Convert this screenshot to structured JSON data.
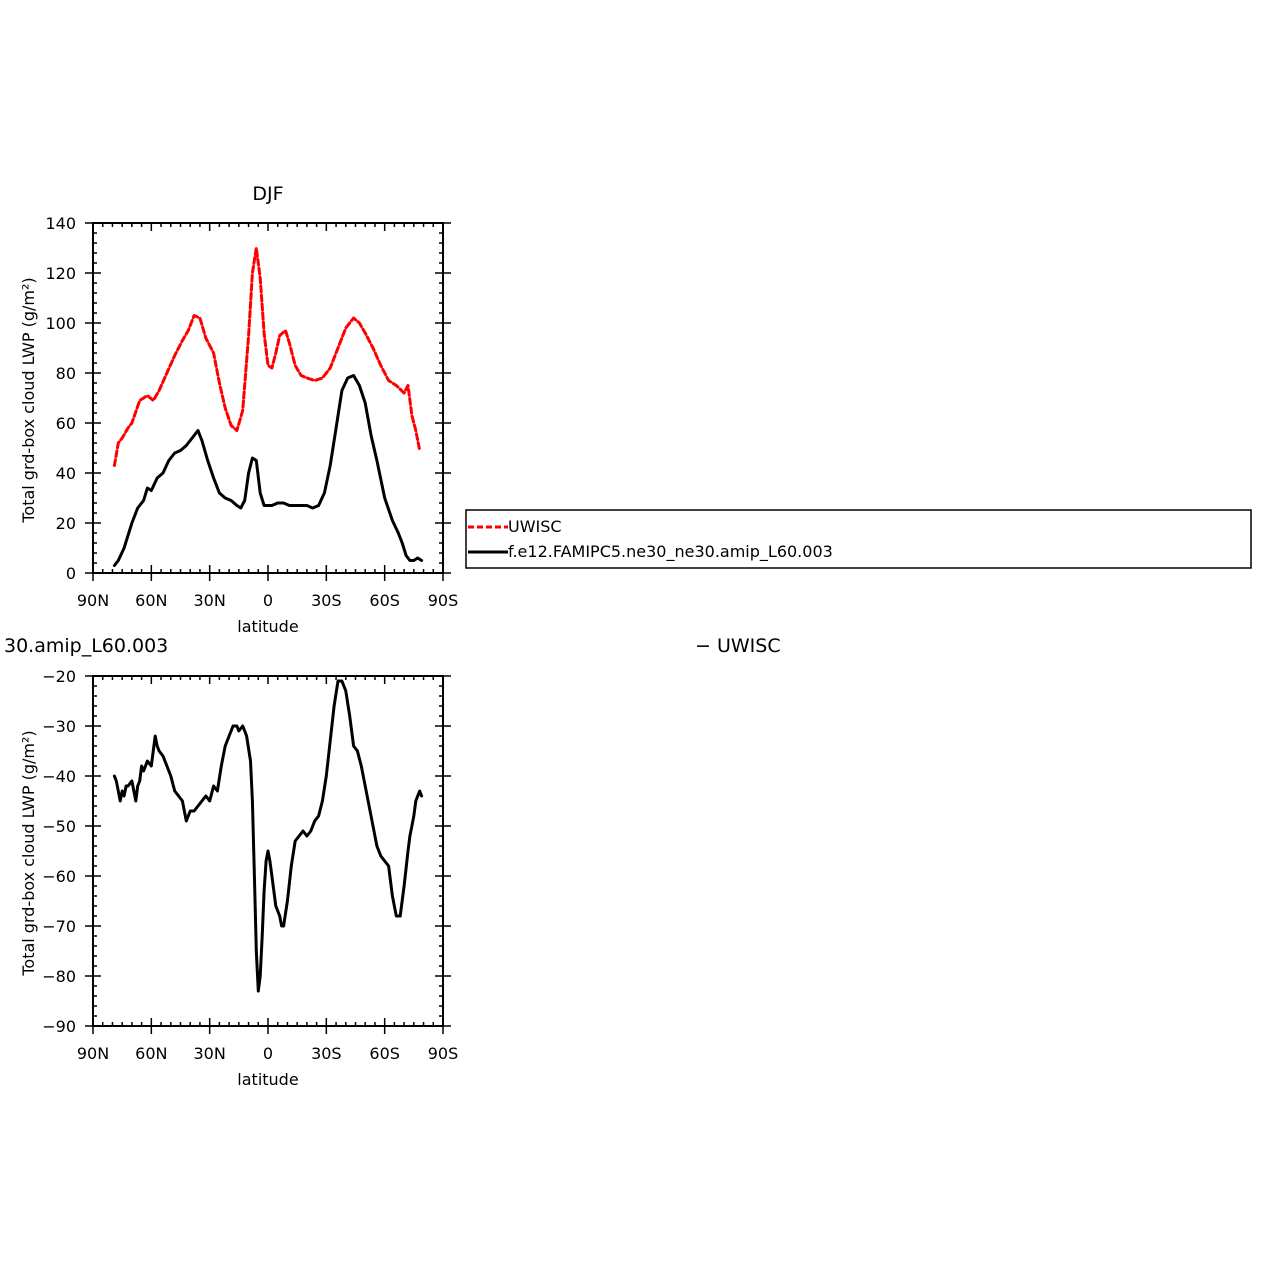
{
  "chart_data": [
    {
      "type": "line",
      "title": "DJF",
      "xlabel": "latitude",
      "ylabel": "Total grd-box cloud LWP (g/m²)",
      "xlim": [
        90,
        -90
      ],
      "ylim": [
        0,
        140
      ],
      "x_ticks": [
        90,
        60,
        30,
        0,
        -30,
        -60,
        -90
      ],
      "x_tick_labels": [
        "90N",
        "60N",
        "30N",
        "0",
        "30S",
        "60S",
        "90S"
      ],
      "y_ticks": [
        0,
        20,
        40,
        60,
        80,
        100,
        120,
        140
      ],
      "y_tick_labels": [
        "0",
        "20",
        "40",
        "60",
        "80",
        "100",
        "120",
        "140"
      ],
      "legend_position": "right, outside plot",
      "series": [
        {
          "name": "UWISC",
          "color": "#ff0000",
          "dash": "dashed",
          "x": [
            79,
            77,
            75,
            72,
            70,
            66,
            64,
            62,
            59,
            56,
            52,
            48,
            44,
            41,
            38,
            35,
            32,
            28,
            25,
            22,
            19,
            16,
            13,
            10,
            8,
            6,
            4,
            2,
            0,
            -2,
            -4,
            -6,
            -9,
            -11,
            -14,
            -17,
            -20,
            -24,
            -28,
            -32,
            -36,
            -40,
            -44,
            -47,
            -50,
            -54,
            -58,
            -62,
            -66,
            -70,
            -72,
            -74,
            -76,
            -78
          ],
          "y": [
            43,
            52,
            54,
            58,
            60,
            69,
            70,
            71,
            69,
            73,
            80,
            87,
            93,
            97,
            103,
            102,
            94,
            88,
            76,
            66,
            59,
            57,
            65,
            95,
            120,
            130,
            118,
            96,
            83,
            82,
            88,
            95,
            97,
            92,
            83,
            79,
            78,
            77,
            78,
            82,
            90,
            98,
            102,
            100,
            96,
            90,
            83,
            77,
            75,
            72,
            75,
            63,
            57,
            49
          ]
        },
        {
          "name": "f.e12.FAMIPC5.ne30_ne30.amip_L60.003",
          "color": "#000000",
          "dash": "solid",
          "x": [
            79,
            77,
            74,
            72,
            70,
            67,
            64,
            62,
            60,
            57,
            54,
            51,
            48,
            45,
            42,
            40,
            38,
            36,
            34,
            31,
            28,
            25,
            22,
            19,
            16,
            14,
            12,
            10,
            8,
            6,
            4,
            2,
            0,
            -2,
            -5,
            -8,
            -11,
            -14,
            -17,
            -20,
            -23,
            -26,
            -29,
            -32,
            -35,
            -38,
            -41,
            -44,
            -47,
            -50,
            -53,
            -56,
            -60,
            -64,
            -67,
            -69,
            -71,
            -73,
            -75,
            -77,
            -79
          ],
          "y": [
            3,
            5,
            10,
            15,
            20,
            26,
            29,
            34,
            33,
            38,
            40,
            45,
            48,
            49,
            51,
            53,
            55,
            57,
            53,
            45,
            38,
            32,
            30,
            29,
            27,
            26,
            29,
            40,
            46,
            45,
            32,
            27,
            27,
            27,
            28,
            28,
            27,
            27,
            27,
            27,
            26,
            27,
            32,
            43,
            58,
            73,
            78,
            79,
            75,
            68,
            55,
            45,
            30,
            21,
            16,
            12,
            7,
            5,
            5,
            6,
            5
          ]
        }
      ]
    },
    {
      "type": "line",
      "title": "30.amip_L60.003",
      "title_right": "− UWISC",
      "xlabel": "latitude",
      "ylabel": "Total grd-box cloud LWP (g/m²)",
      "xlim": [
        90,
        -90
      ],
      "ylim": [
        -90,
        -20
      ],
      "x_ticks": [
        90,
        60,
        30,
        0,
        -30,
        -60,
        -90
      ],
      "x_tick_labels": [
        "90N",
        "60N",
        "30N",
        "0",
        "30S",
        "60S",
        "90S"
      ],
      "y_ticks": [
        -90,
        -80,
        -70,
        -60,
        -50,
        -40,
        -30,
        -20
      ],
      "y_tick_labels": [
        "−90",
        "−80",
        "−70",
        "−60",
        "−50",
        "−40",
        "−30",
        "−20"
      ],
      "series": [
        {
          "name": "",
          "color": "#000000",
          "dash": "solid",
          "x": [
            79,
            78,
            77,
            76,
            75,
            74,
            73,
            72,
            70,
            68,
            67,
            66,
            65,
            64,
            62,
            60,
            58,
            57,
            56,
            54,
            52,
            50,
            48,
            46,
            44,
            42,
            40,
            38,
            36,
            34,
            32,
            30,
            28,
            26,
            24,
            22,
            20,
            19,
            18,
            16,
            15,
            13,
            12,
            11,
            9,
            8,
            7,
            6,
            5,
            4,
            3,
            2,
            1,
            0,
            -1,
            -2,
            -4,
            -6,
            -7,
            -8,
            -10,
            -12,
            -14,
            -16,
            -18,
            -20,
            -22,
            -24,
            -26,
            -28,
            -30,
            -32,
            -34,
            -36,
            -38,
            -40,
            -42,
            -44,
            -46,
            -48,
            -50,
            -52,
            -54,
            -56,
            -58,
            -60,
            -62,
            -64,
            -66,
            -68,
            -70,
            -72,
            -73,
            -74,
            -75,
            -76,
            -77,
            -78,
            -79
          ],
          "y": [
            -40,
            -41,
            -43,
            -45,
            -43,
            -44,
            -42,
            -42,
            -41,
            -45,
            -42,
            -41,
            -38,
            -39,
            -37,
            -38,
            -32,
            -34,
            -35,
            -36,
            -38,
            -40,
            -43,
            -44,
            -45,
            -49,
            -47,
            -47,
            -46,
            -45,
            -44,
            -45,
            -42,
            -43,
            -38,
            -34,
            -32,
            -31,
            -30,
            -30,
            -31,
            -30,
            -31,
            -32,
            -37,
            -45,
            -60,
            -75,
            -83,
            -80,
            -72,
            -63,
            -57,
            -55,
            -57,
            -60,
            -66,
            -68,
            -70,
            -70,
            -65,
            -58,
            -53,
            -52,
            -51,
            -52,
            -51,
            -49,
            -48,
            -45,
            -40,
            -33,
            -26,
            -21,
            -21,
            -23,
            -28,
            -34,
            -35,
            -38,
            -42,
            -46,
            -50,
            -54,
            -56,
            -57,
            -58,
            -64,
            -68,
            -68,
            -62,
            -55,
            -52,
            -50,
            -48,
            -45,
            -44,
            -43,
            -44
          ]
        }
      ]
    }
  ]
}
